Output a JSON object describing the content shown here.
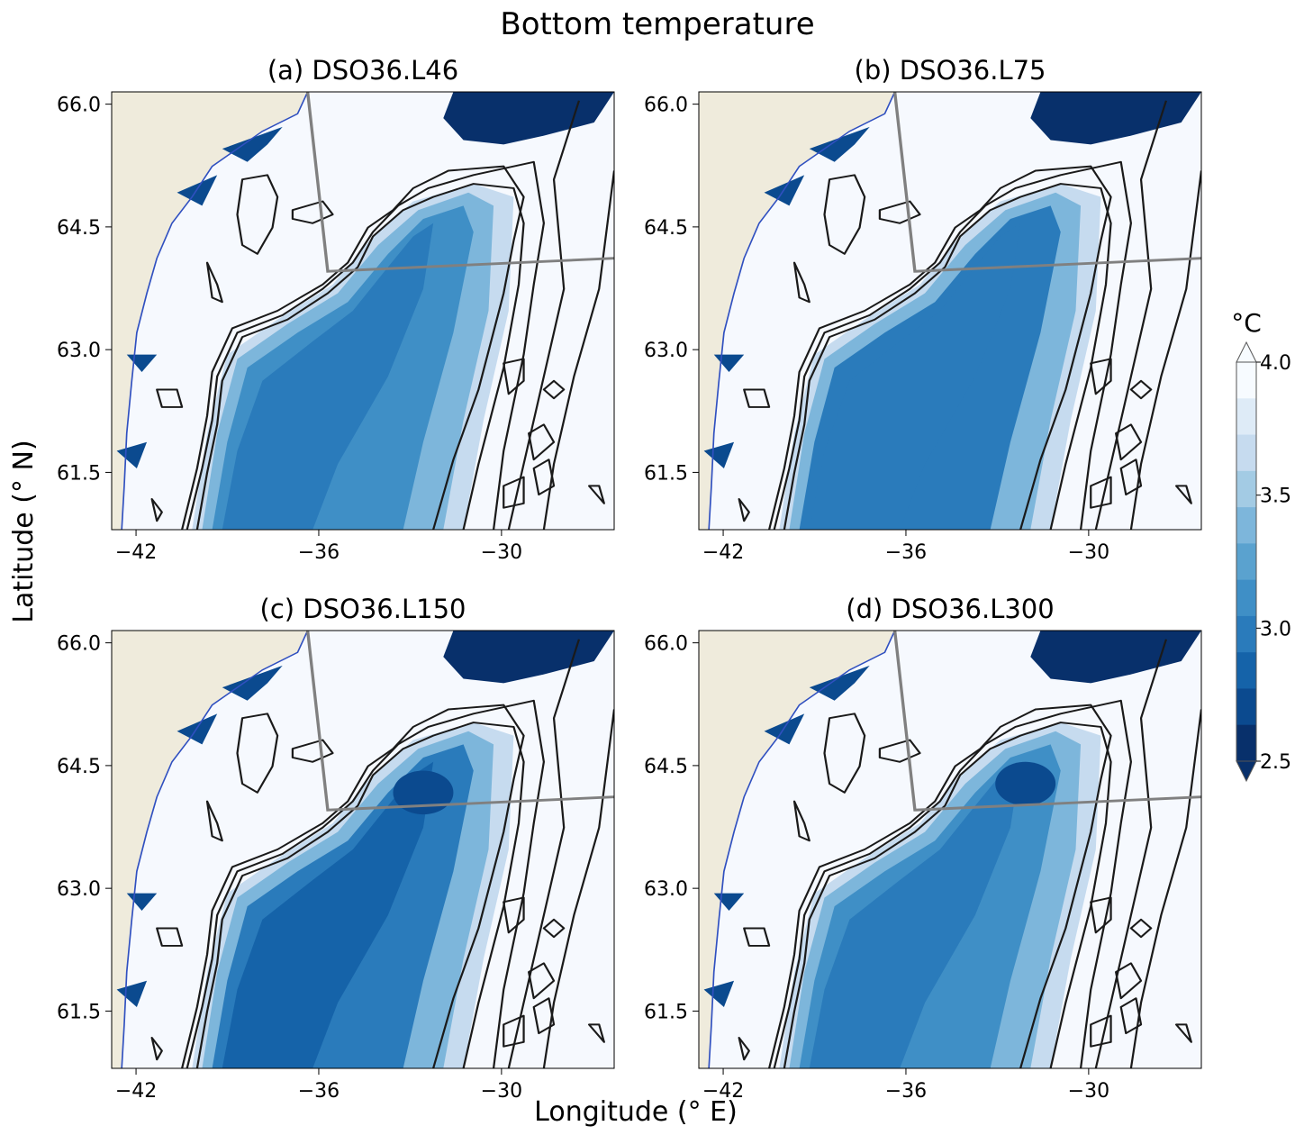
{
  "figure": {
    "title": "Bottom temperature",
    "xlabel": "Longitude (° E)",
    "ylabel": "Latitude (° N)"
  },
  "panels": [
    {
      "title": "(a) DSO36.L46",
      "variant": 0
    },
    {
      "title": "(b) DSO36.L75",
      "variant": 1
    },
    {
      "title": "(c) DSO36.L150",
      "variant": 2
    },
    {
      "title": "(d) DSO36.L300",
      "variant": 3
    }
  ],
  "axes": {
    "x_ticks": [
      "−42",
      "−36",
      "−30"
    ],
    "x_tick_values": [
      -42,
      -36,
      -30
    ],
    "y_ticks": [
      "61.5",
      "63.0",
      "64.5",
      "66.0"
    ],
    "y_tick_values": [
      61.5,
      63.0,
      64.5,
      66.0
    ],
    "xlim": [
      -42.8,
      -26.3
    ],
    "ylim": [
      60.8,
      66.15
    ]
  },
  "colorbar": {
    "unit": "°C",
    "ticks": [
      "2.5",
      "3.0",
      "3.5",
      "4.0"
    ],
    "tick_values": [
      2.5,
      3.0,
      3.5,
      4.0
    ],
    "range": [
      2.5,
      4.0
    ],
    "extend": "both",
    "colormap": "Blues_r",
    "colors": [
      "#08306b",
      "#0b4a8f",
      "#1563a9",
      "#2a7bbb",
      "#3f8fc6",
      "#5aa2cf",
      "#7db6db",
      "#a3cbe4",
      "#c6dbef",
      "#deebf7",
      "#f7fbff"
    ]
  },
  "colors": {
    "land": "#efebdc",
    "ocean": "#f6f9fe",
    "contour": "#1a1a1a",
    "section_line": "#808080"
  },
  "chart_data": {
    "type": "heatmap",
    "title": "Bottom temperature",
    "xlabel": "Longitude (° E)",
    "ylabel": "Latitude (° N)",
    "xlim": [
      -42.8,
      -26.3
    ],
    "ylim": [
      60.8,
      66.15
    ],
    "colorbar_range": [
      2.5,
      4.0
    ],
    "panels": [
      "(a) DSO36.L46",
      "(b) DSO36.L75",
      "(c) DSO36.L150",
      "(d) DSO36.L300"
    ]
  }
}
